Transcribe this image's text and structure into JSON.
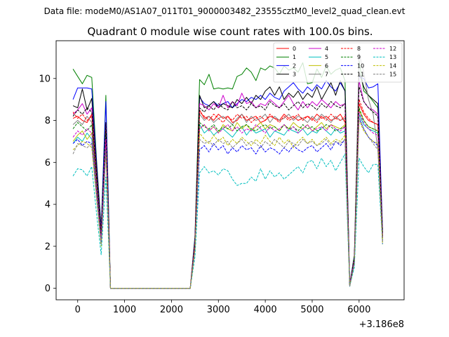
{
  "suptitle": "Data file: modeM0/AS1A07_011T01_9000003482_23555cztM0_level2_quad_clean.evt",
  "chart_data": {
    "type": "line",
    "title": "Quadrant 0 module wise count rates with 100.0s bins.",
    "xlabel": "",
    "ylabel": "",
    "x_offset_label": "+3.186e8",
    "xlim": [
      -460,
      6960
    ],
    "ylim": [
      -0.55,
      11.8
    ],
    "xticks": [
      0,
      1000,
      2000,
      3000,
      4000,
      5000,
      6000
    ],
    "xtick_labels": [
      "0",
      "1000",
      "2000",
      "3000",
      "4000",
      "5000",
      "6000"
    ],
    "yticks": [
      0,
      2,
      4,
      6,
      8,
      10
    ],
    "ytick_labels": [
      "0",
      "2",
      "4",
      "6",
      "8",
      "10"
    ],
    "grid": false,
    "legend_position": "top-right",
    "legend_columns": 4,
    "x": [
      -100,
      0,
      100,
      200,
      300,
      400,
      500,
      600,
      700,
      800,
      900,
      1000,
      1100,
      1200,
      1300,
      1400,
      1500,
      1600,
      1700,
      1800,
      1900,
      2000,
      2100,
      2200,
      2300,
      2400,
      2500,
      2600,
      2700,
      2800,
      2900,
      3000,
      3100,
      3200,
      3300,
      3400,
      3500,
      3600,
      3700,
      3800,
      3900,
      4000,
      4100,
      4200,
      4300,
      4400,
      4500,
      4600,
      4700,
      4800,
      4900,
      5000,
      5100,
      5200,
      5300,
      5400,
      5500,
      5600,
      5700,
      5800,
      5900,
      6000,
      6100,
      6200,
      6300,
      6400,
      6500
    ],
    "series": [
      {
        "name": "0",
        "color": "#ff0000",
        "dash": "solid",
        "values": [
          8.1,
          8.2,
          8.0,
          7.9,
          8.3,
          5.2,
          2.7,
          7.9,
          0,
          0,
          0,
          0,
          0,
          0,
          0,
          0,
          0,
          0,
          0,
          0,
          0,
          0,
          0,
          0,
          0,
          0,
          2.2,
          8.5,
          8.1,
          8.2,
          8.0,
          8.3,
          8.1,
          8.2,
          7.9,
          8.0,
          8.3,
          8.0,
          8.1,
          8.2,
          7.9,
          8.0,
          8.2,
          8.1,
          8.0,
          8.3,
          8.1,
          8.2,
          8.0,
          8.1,
          8.2,
          8.0,
          8.3,
          8.1,
          8.2,
          8.0,
          8.1,
          8.3,
          7.9,
          0.1,
          1.5,
          8.8,
          8.3,
          8.0,
          7.9,
          7.8,
          2.4
        ]
      },
      {
        "name": "1",
        "color": "#008000",
        "dash": "solid",
        "values": [
          10.45,
          10.1,
          9.75,
          10.15,
          10.05,
          6.2,
          2.9,
          9.2,
          0,
          0,
          0,
          0,
          0,
          0,
          0,
          0,
          0,
          0,
          0,
          0,
          0,
          0,
          0,
          0,
          0,
          0,
          2.5,
          9.95,
          9.7,
          10.2,
          9.5,
          9.55,
          9.5,
          9.55,
          9.5,
          10.1,
          10.2,
          10.5,
          10.3,
          9.9,
          10.5,
          10.4,
          10.6,
          10.5,
          10.2,
          10.6,
          10.4,
          10.5,
          10.3,
          10.75,
          9.75,
          9.8,
          10.45,
          10.05,
          10.6,
          10.2,
          10.4,
          10.5,
          9.9,
          0.2,
          1.6,
          10.85,
          9.4,
          9.2,
          8.9,
          8.6,
          2.8
        ]
      },
      {
        "name": "2",
        "color": "#0000ff",
        "dash": "solid",
        "values": [
          9.0,
          9.55,
          9.55,
          9.55,
          9.5,
          6.0,
          2.8,
          8.9,
          0,
          0,
          0,
          0,
          0,
          0,
          0,
          0,
          0,
          0,
          0,
          0,
          0,
          0,
          0,
          0,
          0,
          0,
          2.4,
          9.1,
          8.8,
          8.7,
          8.9,
          8.7,
          8.8,
          8.9,
          8.6,
          8.8,
          9.0,
          8.9,
          9.1,
          9.0,
          9.2,
          9.0,
          9.3,
          9.1,
          9.0,
          9.4,
          9.6,
          9.8,
          9.5,
          9.3,
          9.6,
          9.4,
          9.7,
          9.5,
          9.9,
          9.6,
          9.4,
          9.8,
          9.4,
          0.2,
          1.5,
          10.1,
          10.0,
          9.55,
          9.6,
          9.75,
          2.7
        ]
      },
      {
        "name": "3",
        "color": "#000000",
        "dash": "solid",
        "values": [
          8.7,
          8.6,
          9.5,
          8.5,
          9.05,
          5.8,
          2.6,
          7.8,
          0,
          0,
          0,
          0,
          0,
          0,
          0,
          0,
          0,
          0,
          0,
          0,
          0,
          0,
          0,
          0,
          0,
          0,
          2.3,
          9.2,
          8.6,
          8.7,
          8.9,
          8.6,
          8.8,
          8.7,
          8.6,
          9.0,
          8.8,
          9.1,
          8.8,
          9.2,
          9.0,
          9.4,
          9.6,
          9.2,
          9.6,
          9.0,
          9.3,
          9.1,
          9.4,
          9.0,
          9.3,
          9.1,
          9.6,
          9.0,
          9.4,
          9.8,
          9.2,
          9.9,
          9.4,
          0.2,
          1.4,
          10.3,
          9.6,
          9.2,
          9.0,
          8.8,
          2.6
        ]
      },
      {
        "name": "4",
        "color": "#cc00cc",
        "dash": "solid",
        "values": [
          8.3,
          8.5,
          8.8,
          8.3,
          8.6,
          5.5,
          2.5,
          7.5,
          0,
          0,
          0,
          0,
          0,
          0,
          0,
          0,
          0,
          0,
          0,
          0,
          0,
          0,
          0,
          0,
          0,
          0,
          2.2,
          8.8,
          8.7,
          8.5,
          8.8,
          8.6,
          9.2,
          8.6,
          8.9,
          8.7,
          9.3,
          8.8,
          8.9,
          8.6,
          8.8,
          8.7,
          9.0,
          8.8,
          8.6,
          8.9,
          9.2,
          8.8,
          8.5,
          8.9,
          8.6,
          8.9,
          8.7,
          9.0,
          8.8,
          8.6,
          8.9,
          8.7,
          8.8,
          0.2,
          1.4,
          9.9,
          8.9,
          8.6,
          8.5,
          8.3,
          2.5
        ]
      },
      {
        "name": "5",
        "color": "#00bfbf",
        "dash": "solid",
        "values": [
          6.9,
          7.2,
          7.0,
          7.4,
          7.1,
          4.6,
          2.2,
          6.8,
          0,
          0,
          0,
          0,
          0,
          0,
          0,
          0,
          0,
          0,
          0,
          0,
          0,
          0,
          0,
          0,
          0,
          0,
          1.9,
          7.8,
          7.4,
          7.6,
          7.3,
          7.5,
          7.6,
          7.4,
          7.2,
          7.5,
          7.7,
          7.3,
          7.6,
          7.4,
          7.5,
          7.6,
          7.2,
          7.5,
          7.4,
          7.3,
          7.6,
          7.5,
          7.4,
          7.6,
          7.3,
          7.5,
          7.4,
          7.7,
          7.5,
          7.3,
          7.6,
          7.4,
          7.5,
          0.1,
          1.2,
          8.3,
          7.8,
          7.6,
          7.5,
          7.4,
          2.2
        ]
      },
      {
        "name": "6",
        "color": "#bfbf00",
        "dash": "solid",
        "values": [
          7.0,
          7.3,
          7.5,
          7.1,
          7.4,
          4.8,
          2.3,
          7.0,
          0,
          0,
          0,
          0,
          0,
          0,
          0,
          0,
          0,
          0,
          0,
          0,
          0,
          0,
          0,
          0,
          0,
          0,
          2.0,
          7.6,
          7.8,
          7.5,
          7.7,
          7.4,
          7.8,
          7.6,
          7.5,
          7.9,
          7.6,
          7.8,
          7.5,
          7.7,
          7.9,
          7.6,
          7.8,
          7.7,
          7.5,
          7.8,
          7.6,
          7.9,
          7.7,
          7.6,
          7.8,
          7.5,
          7.7,
          7.9,
          7.6,
          7.8,
          7.7,
          7.6,
          7.8,
          0.1,
          1.3,
          8.5,
          8.0,
          7.7,
          7.6,
          7.5,
          2.3
        ]
      },
      {
        "name": "7",
        "color": "#808080",
        "dash": "solid",
        "values": [
          7.8,
          8.0,
          7.8,
          8.2,
          7.9,
          5.1,
          2.5,
          7.6,
          0,
          0,
          0,
          0,
          0,
          0,
          0,
          0,
          0,
          0,
          0,
          0,
          0,
          0,
          0,
          0,
          0,
          0,
          2.1,
          8.3,
          8.0,
          8.2,
          7.9,
          8.1,
          8.2,
          8.0,
          7.8,
          8.1,
          8.3,
          7.9,
          8.2,
          8.0,
          8.1,
          8.3,
          7.9,
          8.2,
          8.0,
          8.1,
          8.3,
          8.0,
          8.2,
          8.1,
          7.9,
          8.2,
          8.0,
          8.3,
          8.1,
          7.9,
          8.2,
          8.0,
          8.1,
          0.1,
          1.4,
          11.2,
          10.3,
          9.0,
          8.3,
          6.6,
          2.4
        ]
      },
      {
        "name": "8",
        "color": "#ff0000",
        "dash": "dashed",
        "values": [
          8.4,
          8.1,
          8.3,
          8.0,
          8.2,
          5.3,
          2.6,
          7.8,
          0,
          0,
          0,
          0,
          0,
          0,
          0,
          0,
          0,
          0,
          0,
          0,
          0,
          0,
          0,
          0,
          0,
          0,
          2.2,
          8.4,
          8.2,
          8.0,
          8.3,
          8.1,
          7.9,
          8.2,
          8.0,
          8.3,
          8.1,
          8.2,
          7.9,
          8.1,
          8.2,
          8.0,
          8.3,
          8.1,
          7.9,
          8.2,
          8.0,
          8.1,
          8.3,
          8.0,
          8.2,
          8.1,
          7.9,
          8.2,
          8.0,
          8.3,
          8.1,
          8.0,
          8.2,
          0.1,
          1.4,
          9.0,
          8.4,
          8.1,
          7.9,
          7.8,
          2.4
        ]
      },
      {
        "name": "9",
        "color": "#008000",
        "dash": "dashed",
        "values": [
          7.6,
          7.9,
          7.7,
          7.5,
          7.8,
          5.0,
          2.4,
          7.4,
          0,
          0,
          0,
          0,
          0,
          0,
          0,
          0,
          0,
          0,
          0,
          0,
          0,
          0,
          0,
          0,
          0,
          0,
          2.0,
          7.9,
          7.7,
          7.6,
          7.8,
          7.5,
          7.7,
          7.6,
          7.8,
          7.5,
          7.7,
          7.8,
          7.6,
          7.5,
          7.7,
          7.8,
          7.6,
          7.7,
          7.5,
          7.8,
          7.6,
          7.7,
          7.5,
          7.8,
          7.6,
          7.7,
          7.5,
          7.6,
          7.8,
          7.7,
          7.5,
          7.6,
          7.7,
          0.1,
          1.3,
          8.6,
          8.0,
          7.7,
          7.6,
          7.5,
          2.3
        ]
      },
      {
        "name": "10",
        "color": "#0000ff",
        "dash": "dashed",
        "values": [
          6.9,
          7.1,
          6.8,
          7.0,
          6.9,
          4.5,
          2.1,
          6.6,
          0,
          0,
          0,
          0,
          0,
          0,
          0,
          0,
          0,
          0,
          0,
          0,
          0,
          0,
          0,
          0,
          0,
          0,
          1.8,
          6.6,
          6.8,
          6.5,
          6.9,
          6.6,
          6.8,
          6.4,
          6.7,
          6.5,
          6.8,
          6.6,
          6.7,
          6.4,
          6.8,
          6.5,
          6.7,
          6.6,
          6.4,
          6.7,
          6.5,
          6.8,
          6.6,
          6.5,
          6.7,
          6.8,
          6.5,
          6.7,
          6.9,
          6.6,
          7.0,
          6.8,
          7.1,
          0.1,
          1.2,
          8.1,
          7.6,
          7.2,
          7.0,
          6.8,
          2.1
        ]
      },
      {
        "name": "11",
        "color": "#000000",
        "dash": "dashed",
        "values": [
          8.2,
          8.5,
          8.3,
          8.6,
          8.4,
          5.4,
          2.6,
          7.9,
          0,
          0,
          0,
          0,
          0,
          0,
          0,
          0,
          0,
          0,
          0,
          0,
          0,
          0,
          0,
          0,
          0,
          0,
          2.2,
          8.6,
          8.4,
          8.7,
          8.5,
          8.8,
          8.6,
          8.5,
          8.9,
          8.6,
          8.7,
          8.5,
          8.8,
          8.6,
          8.7,
          8.5,
          8.9,
          8.7,
          8.6,
          8.8,
          8.5,
          8.7,
          8.9,
          8.6,
          8.8,
          8.7,
          8.5,
          8.8,
          8.6,
          8.9,
          8.7,
          8.6,
          8.8,
          0.1,
          1.5,
          9.6,
          8.9,
          8.6,
          8.4,
          8.2,
          2.5
        ]
      },
      {
        "name": "12",
        "color": "#cc00cc",
        "dash": "dashed",
        "values": [
          7.2,
          7.5,
          7.3,
          7.6,
          7.4,
          4.8,
          2.3,
          7.1,
          0,
          0,
          0,
          0,
          0,
          0,
          0,
          0,
          0,
          0,
          0,
          0,
          0,
          0,
          0,
          0,
          0,
          0,
          2.0,
          7.6,
          7.8,
          7.5,
          7.7,
          7.4,
          7.6,
          7.8,
          7.5,
          7.7,
          7.4,
          7.6,
          7.5,
          7.8,
          7.6,
          7.4,
          7.7,
          7.5,
          7.6,
          7.8,
          7.5,
          7.7,
          7.4,
          7.6,
          7.8,
          7.5,
          7.6,
          7.7,
          7.5,
          7.8,
          7.6,
          7.5,
          7.7,
          0.1,
          1.3,
          8.4,
          7.9,
          7.6,
          7.4,
          7.3,
          2.2
        ]
      },
      {
        "name": "13",
        "color": "#00bfbf",
        "dash": "dashed",
        "values": [
          5.35,
          5.7,
          5.65,
          5.35,
          5.8,
          3.6,
          1.6,
          5.3,
          0,
          0,
          0,
          0,
          0,
          0,
          0,
          0,
          0,
          0,
          0,
          0,
          0,
          0,
          0,
          0,
          0,
          0,
          1.5,
          5.5,
          5.8,
          5.5,
          5.6,
          5.4,
          5.7,
          5.6,
          5.2,
          4.9,
          5.0,
          5.0,
          5.3,
          5.1,
          5.7,
          5.2,
          5.6,
          5.3,
          5.5,
          5.2,
          5.4,
          5.6,
          5.8,
          5.5,
          6.0,
          6.1,
          5.7,
          6.2,
          5.8,
          6.1,
          5.6,
          6.0,
          6.4,
          0.1,
          1.0,
          6.2,
          5.8,
          5.5,
          5.9,
          5.9,
          2.1
        ]
      },
      {
        "name": "14",
        "color": "#bfbf00",
        "dash": "dashed",
        "values": [
          6.6,
          6.8,
          7.0,
          6.9,
          6.7,
          4.3,
          2.0,
          6.5,
          0,
          0,
          0,
          0,
          0,
          0,
          0,
          0,
          0,
          0,
          0,
          0,
          0,
          0,
          0,
          0,
          0,
          0,
          1.8,
          7.4,
          7.1,
          6.9,
          7.3,
          7.0,
          7.2,
          6.8,
          7.1,
          6.9,
          7.2,
          7.0,
          6.8,
          7.1,
          6.9,
          7.3,
          7.0,
          6.8,
          7.2,
          6.9,
          7.1,
          6.7,
          7.0,
          7.2,
          6.9,
          7.1,
          6.8,
          7.0,
          7.2,
          6.9,
          7.1,
          7.0,
          7.3,
          0.1,
          1.2,
          8.0,
          7.5,
          7.2,
          7.0,
          6.9,
          2.1
        ]
      },
      {
        "name": "15",
        "color": "#808080",
        "dash": "dashed",
        "values": [
          6.4,
          6.9,
          6.8,
          6.7,
          6.9,
          4.4,
          2.1,
          6.6,
          0,
          0,
          0,
          0,
          0,
          0,
          0,
          0,
          0,
          0,
          0,
          0,
          0,
          0,
          0,
          0,
          0,
          0,
          1.9,
          7.1,
          6.9,
          7.0,
          6.8,
          7.1,
          6.9,
          7.0,
          6.7,
          6.9,
          7.1,
          6.8,
          7.0,
          6.9,
          6.7,
          7.0,
          6.8,
          7.1,
          6.9,
          6.7,
          7.0,
          6.9,
          6.8,
          7.1,
          6.9,
          7.0,
          6.8,
          6.9,
          7.1,
          6.8,
          7.0,
          6.9,
          7.1,
          0.1,
          1.2,
          8.2,
          7.6,
          7.2,
          6.9,
          6.6,
          2.2
        ]
      }
    ]
  }
}
